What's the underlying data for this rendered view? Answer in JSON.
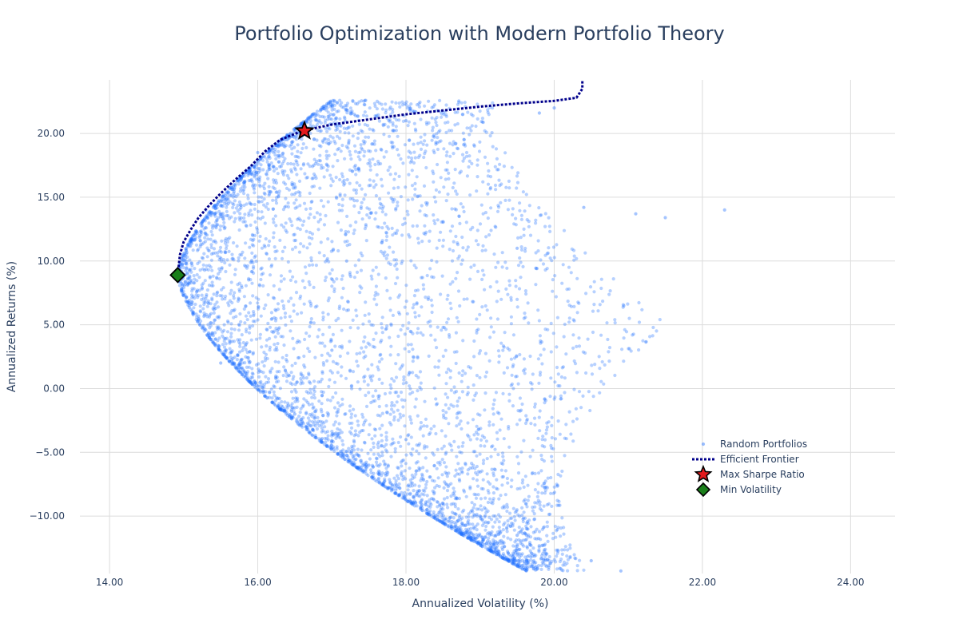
{
  "chart_data": {
    "type": "scatter",
    "title": "Portfolio Optimization with Modern Portfolio Theory",
    "xlabel": "Annualized Volatility (%)",
    "ylabel": "Annualized Returns (%)",
    "xlim": [
      13.6,
      24.6
    ],
    "ylim": [
      -14.5,
      24.2
    ],
    "x_ticks": [
      "14.00",
      "16.00",
      "18.00",
      "20.00",
      "22.00",
      "24.00"
    ],
    "y_ticks": [
      "−10.00",
      "−5.00",
      "0.00",
      "5.00",
      "10.00",
      "15.00",
      "20.00"
    ],
    "grid": true,
    "legend_position": "bottom-right",
    "colors": {
      "random": "#1f6fff",
      "frontier": "#00008b",
      "max_sharpe": "#e31a1c",
      "min_vol": "#1a7f1a"
    },
    "series": [
      {
        "name": "Random Portfolios",
        "kind": "scatter",
        "note_count": 5000,
        "sample_points": [
          [
            14.9,
            8.9
          ],
          [
            15.3,
            14.0
          ],
          [
            16.0,
            18.5
          ],
          [
            16.6,
            19.8
          ],
          [
            18.0,
            21.0
          ],
          [
            19.8,
            21.6
          ],
          [
            20.0,
            22.0
          ],
          [
            21.1,
            13.7
          ],
          [
            21.5,
            13.4
          ],
          [
            22.3,
            14.0
          ],
          [
            20.4,
            14.2
          ],
          [
            19.5,
            11.0
          ],
          [
            17.0,
            3.0
          ],
          [
            18.0,
            -4.0
          ],
          [
            19.0,
            -10.0
          ],
          [
            19.5,
            -11.5
          ],
          [
            20.5,
            -13.5
          ],
          [
            20.9,
            -14.3
          ],
          [
            15.5,
            2.0
          ],
          [
            16.5,
            -2.0
          ],
          [
            17.5,
            -6.0
          ],
          [
            18.5,
            -9.0
          ],
          [
            17.2,
            10.0
          ],
          [
            18.3,
            7.0
          ]
        ]
      },
      {
        "name": "Efficient Frontier",
        "kind": "line",
        "style": "dotted",
        "x": [
          14.92,
          14.95,
          15.0,
          15.1,
          15.2,
          15.35,
          15.5,
          15.7,
          15.9,
          16.1,
          16.3,
          16.6,
          17.0,
          17.5,
          18.0,
          18.5,
          19.0,
          19.5,
          20.0,
          20.3,
          20.38,
          20.38
        ],
        "y": [
          8.9,
          10.5,
          11.5,
          12.5,
          13.4,
          14.4,
          15.3,
          16.4,
          17.4,
          18.6,
          19.5,
          20.2,
          20.7,
          21.1,
          21.5,
          21.8,
          22.1,
          22.35,
          22.55,
          22.8,
          23.5,
          24.2
        ]
      },
      {
        "name": "Max Sharpe Ratio",
        "kind": "marker",
        "marker": "star",
        "x": [
          16.63
        ],
        "y": [
          20.2
        ]
      },
      {
        "name": "Min Volatility",
        "kind": "marker",
        "marker": "diamond",
        "x": [
          14.92
        ],
        "y": [
          8.9
        ]
      }
    ]
  }
}
